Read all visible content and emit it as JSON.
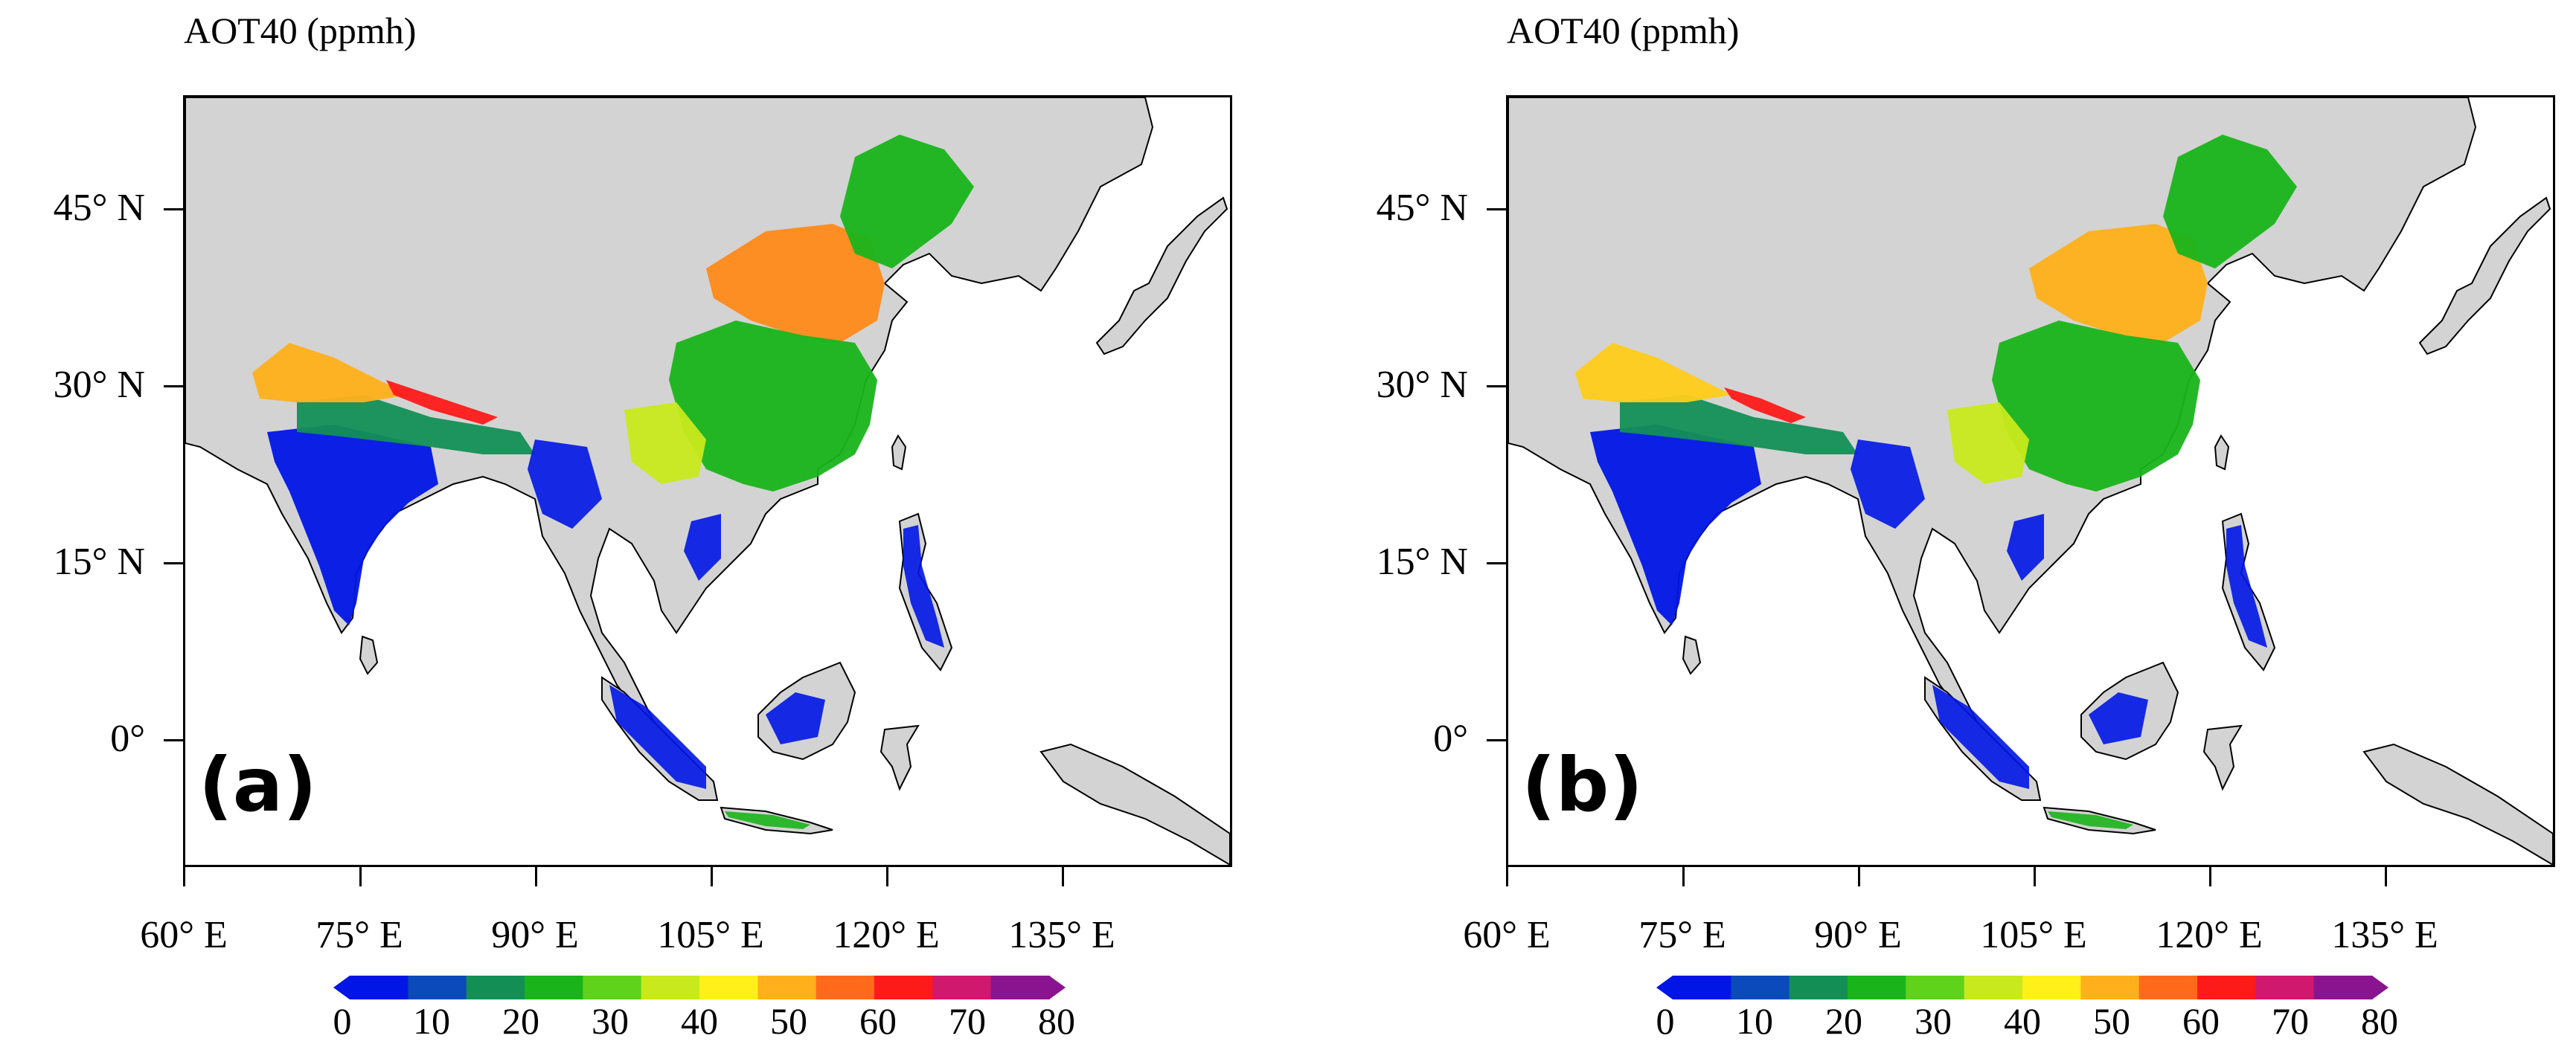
{
  "figure": {
    "panels": [
      {
        "id": "a",
        "title": "AOT40 (ppmh)",
        "label": "(a)"
      },
      {
        "id": "b",
        "title": "AOT40 (ppmh)",
        "label": "(b)"
      }
    ],
    "lat_labels": [
      "45° N",
      "30° N",
      "15° N",
      "0°"
    ],
    "lon_labels": [
      "60° E",
      "75° E",
      "90° E",
      "105° E",
      "120° E",
      "135° E"
    ],
    "colorbar": {
      "ticks": [
        "0",
        "10",
        "20",
        "30",
        "40",
        "50",
        "60",
        "70",
        "80"
      ],
      "colors": [
        "#0015e6",
        "#0a4aba",
        "#138f56",
        "#19b41a",
        "#5fd21a",
        "#c8ea1c",
        "#fff01a",
        "#ffb01a",
        "#ff6a1a",
        "#ff1a1a",
        "#d0186e",
        "#8a1490"
      ],
      "range": [
        0,
        80
      ],
      "units": "ppmh"
    },
    "colors": {
      "land": "#d3d3d3",
      "ocean": "#ffffff",
      "frame": "#000000"
    }
  }
}
